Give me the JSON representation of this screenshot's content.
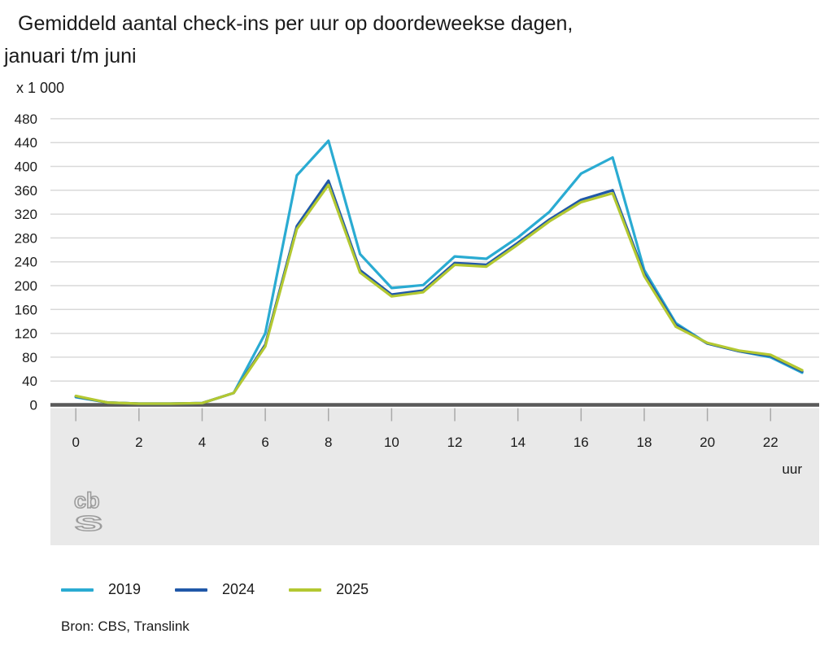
{
  "title": {
    "line1": "Gemiddeld aantal check-ins per uur op doordeweekse dagen,",
    "line2": "januari t/m juni"
  },
  "unit_label": "x 1 000",
  "source": "Bron: CBS, Translink",
  "logo": {
    "top_text": "cb",
    "bottom_text": "s"
  },
  "colors": {
    "series_2019": "#2aabd2",
    "series_2024": "#2058a8",
    "series_2025": "#b3c831",
    "grid": "#d9d9d9",
    "zero_line": "#595959",
    "band_background": "#e9e9e9",
    "tick": "#a9a9a9",
    "text": "#1a1a1a",
    "logo": "#9c9c9c"
  },
  "chart_data": {
    "type": "line",
    "title": "Gemiddeld aantal check-ins per uur op doordeweekse dagen, januari t/m juni",
    "unit": "x 1 000",
    "xlabel": "uur",
    "ylabel": "",
    "x": [
      0,
      1,
      2,
      3,
      4,
      5,
      6,
      7,
      8,
      9,
      10,
      11,
      12,
      13,
      14,
      15,
      16,
      17,
      18,
      19,
      20,
      21,
      22,
      23
    ],
    "x_tick_labels": [
      0,
      2,
      4,
      6,
      8,
      10,
      12,
      14,
      16,
      18,
      20,
      22
    ],
    "y_ticks": [
      0,
      40,
      80,
      120,
      160,
      200,
      240,
      280,
      320,
      360,
      400,
      440,
      480
    ],
    "ylim": [
      0,
      480
    ],
    "grid": true,
    "legend_position": "bottom",
    "series": [
      {
        "name": "2019",
        "color": "#2aabd2",
        "values": [
          13,
          4,
          2,
          2,
          3,
          20,
          120,
          385,
          443,
          253,
          196,
          201,
          249,
          245,
          281,
          324,
          388,
          415,
          226,
          137,
          103,
          90,
          80,
          54
        ]
      },
      {
        "name": "2024",
        "color": "#2058a8",
        "values": [
          14,
          4,
          2,
          2,
          3,
          20,
          101,
          300,
          376,
          226,
          185,
          192,
          238,
          235,
          272,
          311,
          344,
          360,
          220,
          134,
          103,
          90,
          82,
          56
        ]
      },
      {
        "name": "2025",
        "color": "#b3c831",
        "values": [
          15,
          4,
          2,
          2,
          3,
          20,
          98,
          295,
          369,
          222,
          182,
          189,
          235,
          232,
          269,
          308,
          340,
          355,
          216,
          131,
          104,
          91,
          84,
          58
        ]
      }
    ]
  }
}
